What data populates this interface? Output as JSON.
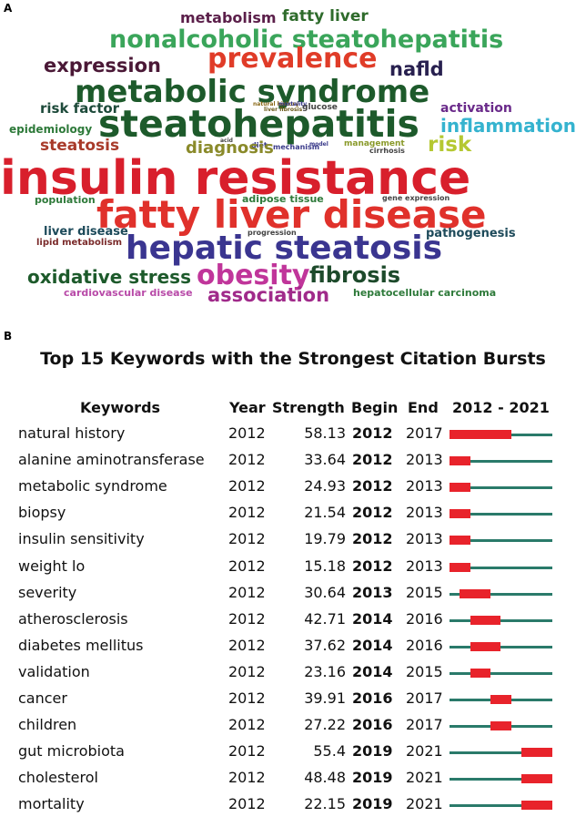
{
  "panels": {
    "a_label": "A",
    "b_label": "B"
  },
  "word_cloud": [
    {
      "text": "metabolism",
      "color": "#5b1f4a",
      "size": 16
    },
    {
      "text": "fatty liver",
      "color": "#2e6b2b",
      "size": 17
    },
    {
      "text": "nonalcoholic steatohepatitis",
      "color": "#3aa55a",
      "size": 27
    },
    {
      "text": "prevalence",
      "color": "#e03c28",
      "size": 30
    },
    {
      "text": "expression",
      "color": "#4a1836",
      "size": 21
    },
    {
      "text": "nafld",
      "color": "#28204f",
      "size": 21
    },
    {
      "text": "metabolic syndrome",
      "color": "#1d5a2b",
      "size": 34
    },
    {
      "text": "natural history",
      "color": "#8a6a1a",
      "size": 6
    },
    {
      "text": "mortality",
      "color": "#3a3a8a",
      "size": 6
    },
    {
      "text": "liver fibrosis",
      "color": "#6a5a1a",
      "size": 6
    },
    {
      "text": "glucose",
      "color": "#444444",
      "size": 9
    },
    {
      "text": "risk factor",
      "color": "#1d4a3a",
      "size": 15
    },
    {
      "text": "activation",
      "color": "#6a2a8a",
      "size": 14
    },
    {
      "text": "steatohepatitis",
      "color": "#1d5a2b",
      "size": 41
    },
    {
      "text": "inflammation",
      "color": "#35b3cf",
      "size": 20
    },
    {
      "text": "epidemiology",
      "color": "#2e7a3a",
      "size": 12
    },
    {
      "text": "acid",
      "color": "#444444",
      "size": 6
    },
    {
      "text": "diet",
      "color": "#3a3a8a",
      "size": 8
    },
    {
      "text": "mechanism",
      "color": "#3a3a8a",
      "size": 8
    },
    {
      "text": "model",
      "color": "#3a3a8a",
      "size": 6
    },
    {
      "text": "management",
      "color": "#8a9a2a",
      "size": 9
    },
    {
      "text": "cirrhosis",
      "color": "#444444",
      "size": 8
    },
    {
      "text": "steatosis",
      "color": "#a83a2a",
      "size": 17
    },
    {
      "text": "diagnosis",
      "color": "#8a8a2a",
      "size": 18
    },
    {
      "text": "risk",
      "color": "#b5c832",
      "size": 23
    },
    {
      "text": "insulin resistance",
      "color": "#d81f2c",
      "size": 52
    },
    {
      "text": "population",
      "color": "#2e7a3a",
      "size": 11
    },
    {
      "text": "adipose tissue",
      "color": "#2e7a3a",
      "size": 11
    },
    {
      "text": "gene expression",
      "color": "#444444",
      "size": 8
    },
    {
      "text": "fatty liver disease",
      "color": "#e0312b",
      "size": 42
    },
    {
      "text": "liver disease",
      "color": "#1d4a5a",
      "size": 13
    },
    {
      "text": "progression",
      "color": "#444444",
      "size": 8
    },
    {
      "text": "pathogenesis",
      "color": "#1d4a5a",
      "size": 13
    },
    {
      "text": "lipid metabolism",
      "color": "#7a2a2a",
      "size": 10
    },
    {
      "text": "hepatic steatosis",
      "color": "#3a3590",
      "size": 36
    },
    {
      "text": "oxidative stress",
      "color": "#1d5a2b",
      "size": 20
    },
    {
      "text": "obesity",
      "color": "#c0359a",
      "size": 30
    },
    {
      "text": "fibrosis",
      "color": "#1d4a2b",
      "size": 24
    },
    {
      "text": "cardiovascular disease",
      "color": "#b84aa8",
      "size": 11
    },
    {
      "text": "association",
      "color": "#a02a8a",
      "size": 21
    },
    {
      "text": "hepatocellular carcinoma",
      "color": "#2e7a3a",
      "size": 11
    }
  ],
  "chart_data": {
    "type": "table",
    "title": "Top 15 Keywords with the Strongest Citation Bursts",
    "headers": {
      "keywords": "Keywords",
      "year": "Year",
      "strength": "Strength",
      "begin": "Begin",
      "end": "End",
      "range": "2012 - 2021"
    },
    "range_start": 2012,
    "range_end": 2021,
    "bar_base_color": "#2a7a6a",
    "burst_color": "#e8232b",
    "rows": [
      {
        "keyword": "natural history",
        "year": "2012",
        "strength": "58.13",
        "begin": "2012",
        "end": "2017"
      },
      {
        "keyword": "alanine aminotransferase",
        "year": "2012",
        "strength": "33.64",
        "begin": "2012",
        "end": "2013"
      },
      {
        "keyword": "metabolic syndrome",
        "year": "2012",
        "strength": "24.93",
        "begin": "2012",
        "end": "2013"
      },
      {
        "keyword": "biopsy",
        "year": "2012",
        "strength": "21.54",
        "begin": "2012",
        "end": "2013"
      },
      {
        "keyword": "insulin sensitivity",
        "year": "2012",
        "strength": "19.79",
        "begin": "2012",
        "end": "2013"
      },
      {
        "keyword": "weight lo",
        "year": "2012",
        "strength": "15.18",
        "begin": "2012",
        "end": "2013"
      },
      {
        "keyword": "severity",
        "year": "2012",
        "strength": "30.64",
        "begin": "2013",
        "end": "2015"
      },
      {
        "keyword": "atherosclerosis",
        "year": "2012",
        "strength": "42.71",
        "begin": "2014",
        "end": "2016"
      },
      {
        "keyword": "diabetes mellitus",
        "year": "2012",
        "strength": "37.62",
        "begin": "2014",
        "end": "2016"
      },
      {
        "keyword": "validation",
        "year": "2012",
        "strength": "23.16",
        "begin": "2014",
        "end": "2015"
      },
      {
        "keyword": "cancer",
        "year": "2012",
        "strength": "39.91",
        "begin": "2016",
        "end": "2017"
      },
      {
        "keyword": "children",
        "year": "2012",
        "strength": "27.22",
        "begin": "2016",
        "end": "2017"
      },
      {
        "keyword": "gut microbiota",
        "year": "2012",
        "strength": "55.4",
        "begin": "2019",
        "end": "2021"
      },
      {
        "keyword": "cholesterol",
        "year": "2012",
        "strength": "48.48",
        "begin": "2019",
        "end": "2021"
      },
      {
        "keyword": "mortality",
        "year": "2012",
        "strength": "22.15",
        "begin": "2019",
        "end": "2021"
      }
    ]
  }
}
